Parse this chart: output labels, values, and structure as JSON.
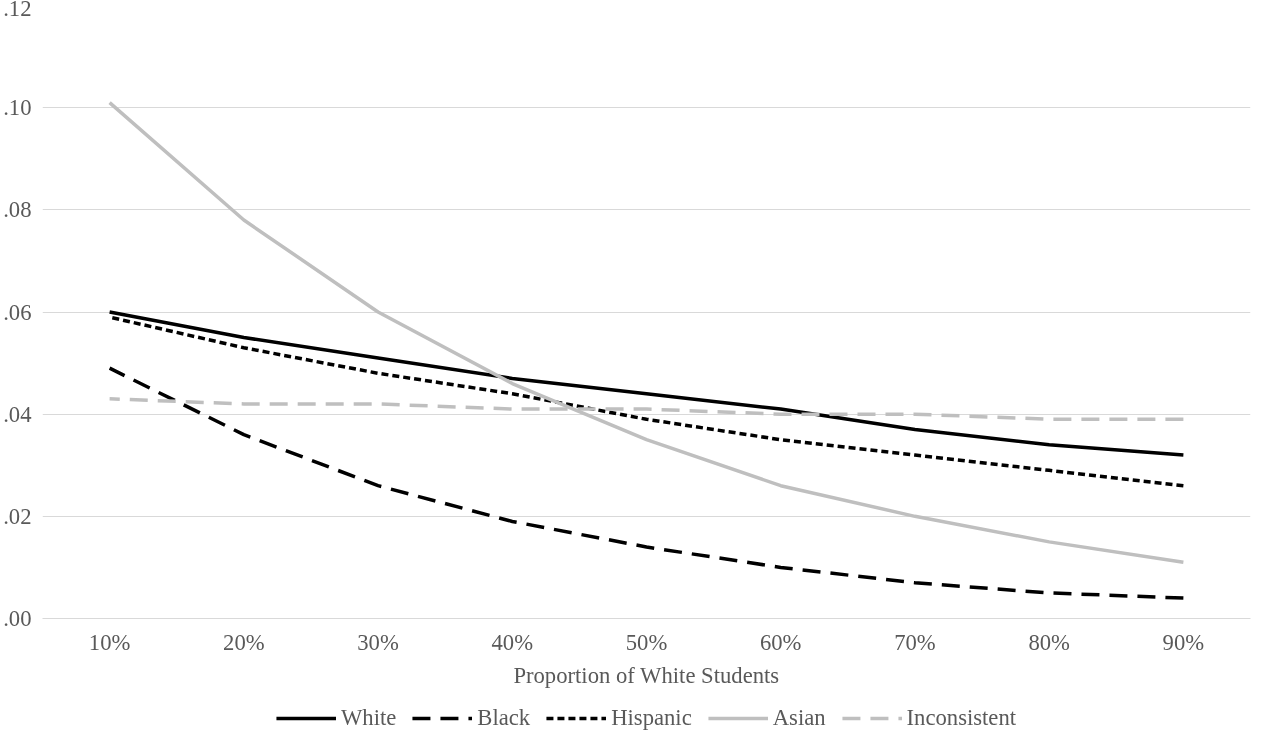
{
  "chart_data": {
    "type": "line",
    "xlabel": "Proportion of White Students",
    "categories": [
      "10%",
      "20%",
      "30%",
      "40%",
      "50%",
      "60%",
      "70%",
      "80%",
      "90%"
    ],
    "ylim": [
      0,
      0.12
    ],
    "yticks": [
      {
        "value": 0,
        "label": ".00"
      },
      {
        "value": 0.02,
        "label": ".02"
      },
      {
        "value": 0.04,
        "label": ".04"
      },
      {
        "value": 0.06,
        "label": ".06"
      },
      {
        "value": 0.08,
        "label": ".08"
      },
      {
        "value": 0.1,
        "label": ".10"
      },
      {
        "value": 0.12,
        "label": ".12"
      }
    ],
    "grid": "y",
    "legend": "bottom",
    "marker": "none",
    "series": [
      {
        "name": "White",
        "color": "#000000",
        "line_style": "solid",
        "values": [
          0.06,
          0.055,
          0.051,
          0.047,
          0.044,
          0.041,
          0.037,
          0.034,
          0.032
        ]
      },
      {
        "name": "Black",
        "color": "#000000",
        "line_style": "dashed",
        "values": [
          0.049,
          0.036,
          0.026,
          0.019,
          0.014,
          0.01,
          0.007,
          0.005,
          0.004
        ]
      },
      {
        "name": "Hispanic",
        "color": "#000000",
        "line_style": "dotted",
        "values": [
          0.059,
          0.053,
          0.048,
          0.044,
          0.039,
          0.035,
          0.032,
          0.029,
          0.026
        ]
      },
      {
        "name": "Asian",
        "color": "#bfbfbf",
        "line_style": "solid",
        "values": [
          0.101,
          0.078,
          0.06,
          0.046,
          0.035,
          0.026,
          0.02,
          0.015,
          0.011
        ]
      },
      {
        "name": "Inconsistent",
        "color": "#bfbfbf",
        "line_style": "dashed",
        "values": [
          0.043,
          0.042,
          0.042,
          0.041,
          0.041,
          0.04,
          0.04,
          0.039,
          0.039
        ]
      }
    ]
  }
}
